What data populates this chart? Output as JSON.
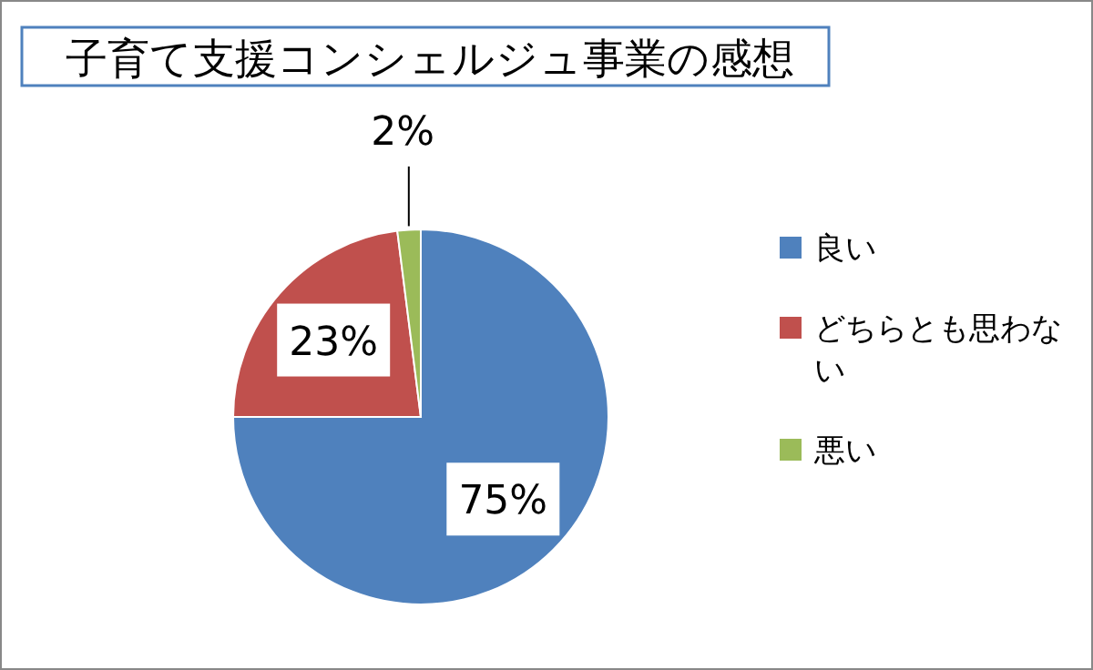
{
  "chart_data": {
    "type": "pie",
    "title": "子育て支援コンシェルジュ事業の感想",
    "categories": [
      "良い",
      "どちらとも思わない",
      "悪い"
    ],
    "values": [
      75,
      23,
      2
    ],
    "value_labels": [
      "75%",
      "23%",
      "2%"
    ],
    "colors": [
      "#4f81bd",
      "#c0504d",
      "#9bbb59"
    ],
    "legend": "right"
  }
}
